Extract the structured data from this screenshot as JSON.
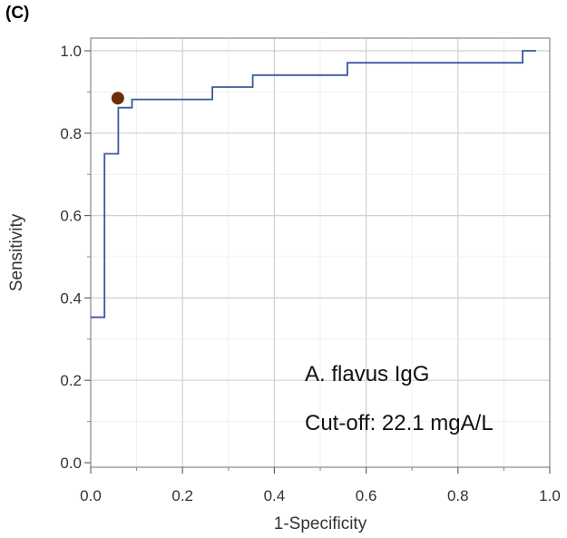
{
  "panel_label": "(C)",
  "chart_data": {
    "type": "line",
    "title": "",
    "xlabel": "1-Specificity",
    "ylabel": "Sensitivity",
    "xlim": [
      0,
      1.0
    ],
    "ylim": [
      0,
      1.0
    ],
    "x_ticks": [
      "0.0",
      "0.2",
      "0.4",
      "0.6",
      "0.8",
      "1.0"
    ],
    "y_ticks": [
      "0.0",
      "0.2",
      "0.4",
      "0.6",
      "0.8",
      "1.0"
    ],
    "grid": true,
    "series": [
      {
        "color": "#3a5a9e",
        "step": true,
        "points": [
          [
            0.0,
            0.353
          ],
          [
            0.03,
            0.353
          ],
          [
            0.03,
            0.75
          ],
          [
            0.06,
            0.75
          ],
          [
            0.06,
            0.862
          ],
          [
            0.09,
            0.862
          ],
          [
            0.09,
            0.882
          ],
          [
            0.265,
            0.882
          ],
          [
            0.265,
            0.912
          ],
          [
            0.353,
            0.912
          ],
          [
            0.353,
            0.941
          ],
          [
            0.559,
            0.941
          ],
          [
            0.559,
            0.971
          ],
          [
            0.941,
            0.971
          ],
          [
            0.941,
            1.0
          ],
          [
            0.97,
            1.0
          ]
        ]
      }
    ],
    "marker": {
      "x": 0.059,
      "y": 0.885,
      "color": "#6b2f0a"
    },
    "annotations": [
      "A. flavus IgG",
      "Cut-off: 22.1 mgA/L"
    ]
  }
}
